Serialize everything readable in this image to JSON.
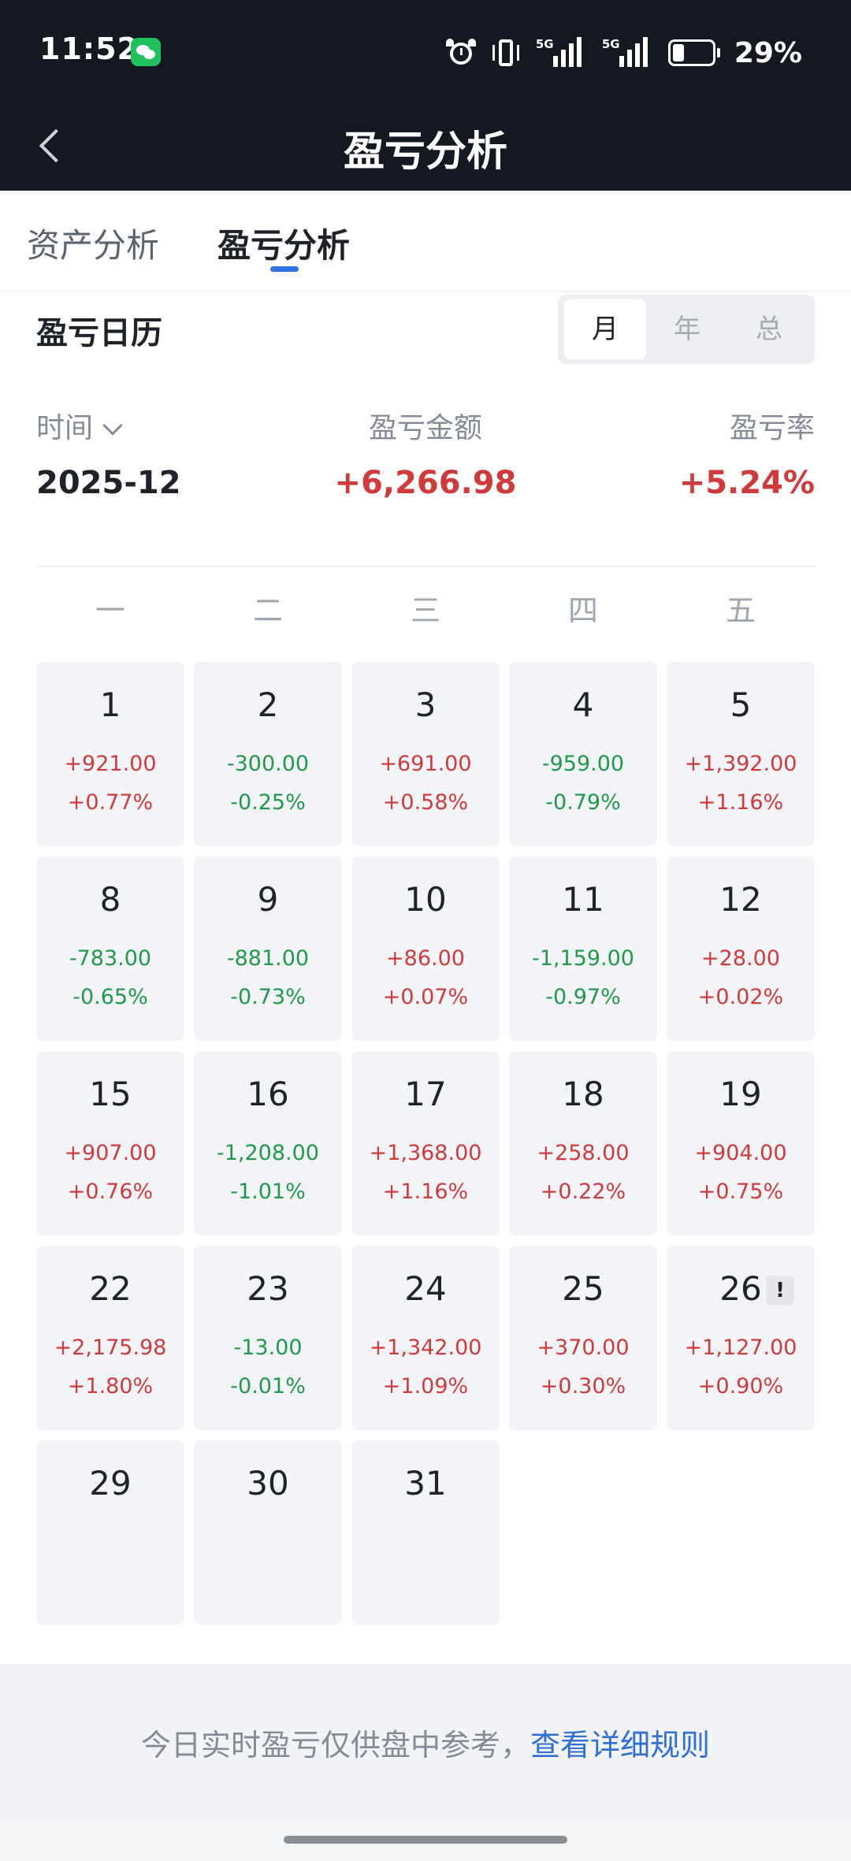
{
  "status_bar": {
    "time": "11:52",
    "network_tag_1": "5G",
    "network_tag_2": "5G",
    "battery": "29%"
  },
  "nav": {
    "title": "盈亏分析"
  },
  "tabs": [
    {
      "label": "资产分析",
      "active": false
    },
    {
      "label": "盈亏分析",
      "active": true
    }
  ],
  "calendar": {
    "title": "盈亏日历",
    "segments": [
      {
        "label": "月",
        "active": true
      },
      {
        "label": "年",
        "active": false
      },
      {
        "label": "总",
        "active": false
      }
    ],
    "summary": {
      "time_label": "时间",
      "time_value": "2025-12",
      "amount_label": "盈亏金额",
      "amount_value": "+6,266.98",
      "rate_label": "盈亏率",
      "rate_value": "+5.24%"
    },
    "weekdays": [
      "一",
      "二",
      "三",
      "四",
      "五"
    ],
    "days": [
      {
        "day": "1",
        "amount": "+921.00",
        "pct": "+0.77%",
        "trend": "up"
      },
      {
        "day": "2",
        "amount": "-300.00",
        "pct": "-0.25%",
        "trend": "down"
      },
      {
        "day": "3",
        "amount": "+691.00",
        "pct": "+0.58%",
        "trend": "up"
      },
      {
        "day": "4",
        "amount": "-959.00",
        "pct": "-0.79%",
        "trend": "down"
      },
      {
        "day": "5",
        "amount": "+1,392.00",
        "pct": "+1.16%",
        "trend": "up"
      },
      {
        "day": "8",
        "amount": "-783.00",
        "pct": "-0.65%",
        "trend": "down"
      },
      {
        "day": "9",
        "amount": "-881.00",
        "pct": "-0.73%",
        "trend": "down"
      },
      {
        "day": "10",
        "amount": "+86.00",
        "pct": "+0.07%",
        "trend": "up"
      },
      {
        "day": "11",
        "amount": "-1,159.00",
        "pct": "-0.97%",
        "trend": "down"
      },
      {
        "day": "12",
        "amount": "+28.00",
        "pct": "+0.02%",
        "trend": "up"
      },
      {
        "day": "15",
        "amount": "+907.00",
        "pct": "+0.76%",
        "trend": "up"
      },
      {
        "day": "16",
        "amount": "-1,208.00",
        "pct": "-1.01%",
        "trend": "down"
      },
      {
        "day": "17",
        "amount": "+1,368.00",
        "pct": "+1.16%",
        "trend": "up"
      },
      {
        "day": "18",
        "amount": "+258.00",
        "pct": "+0.22%",
        "trend": "up"
      },
      {
        "day": "19",
        "amount": "+904.00",
        "pct": "+0.75%",
        "trend": "up"
      },
      {
        "day": "22",
        "amount": "+2,175.98",
        "pct": "+1.80%",
        "trend": "up"
      },
      {
        "day": "23",
        "amount": "-13.00",
        "pct": "-0.01%",
        "trend": "down"
      },
      {
        "day": "24",
        "amount": "+1,342.00",
        "pct": "+1.09%",
        "trend": "up"
      },
      {
        "day": "25",
        "amount": "+370.00",
        "pct": "+0.30%",
        "trend": "up"
      },
      {
        "day": "26",
        "amount": "+1,127.00",
        "pct": "+0.90%",
        "trend": "up",
        "badge": "!"
      },
      {
        "day": "29",
        "amount": "",
        "pct": "",
        "trend": ""
      },
      {
        "day": "30",
        "amount": "",
        "pct": "",
        "trend": ""
      },
      {
        "day": "31",
        "amount": "",
        "pct": "",
        "trend": ""
      }
    ]
  },
  "footer": {
    "note": "今日实时盈亏仅供盘中参考，",
    "link": "查看详细规则"
  },
  "colors": {
    "up": "#d03a3a",
    "down": "#1e9a4a",
    "accent": "#2f73e6",
    "header_bg": "#141821"
  }
}
